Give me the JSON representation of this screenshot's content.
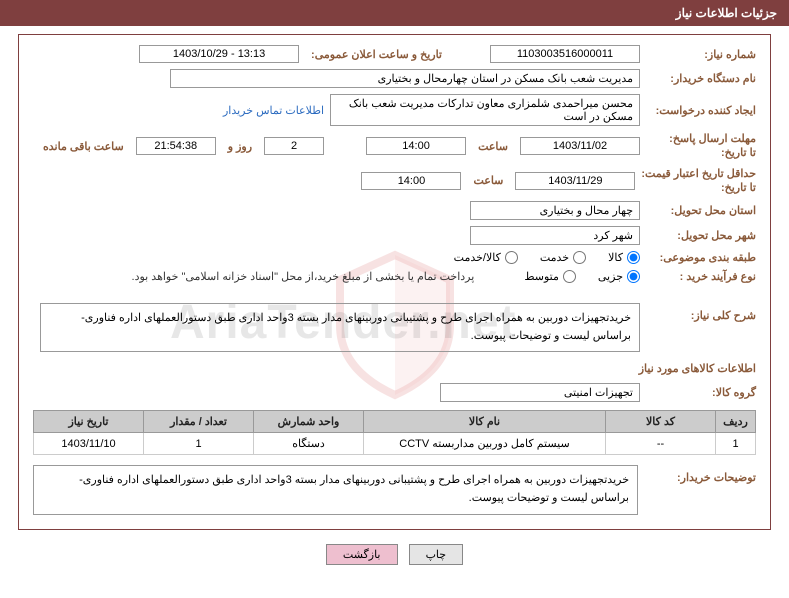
{
  "header": {
    "title": "جزئیات اطلاعات نیاز"
  },
  "need": {
    "number_label": "شماره نیاز:",
    "number": "1103003516000011",
    "announce_label": "تاریخ و ساعت اعلان عمومی:",
    "announce_value": "1403/10/29 - 13:13",
    "buyer_org_label": "نام دستگاه خریدار:",
    "buyer_org": "مدیریت شعب بانک مسکن در استان چهارمحال و بختیاری",
    "requester_label": "ایجاد کننده درخواست:",
    "requester": "محسن  میراحمدی شلمزاری  معاون تدارکات  مدیریت شعب بانک مسکن در است",
    "contact_link": "اطلاعات تماس خریدار",
    "deadline_label": "مهلت ارسال پاسخ:",
    "to_label": "تا تاریخ:",
    "deadline_date": "1403/11/02",
    "time_label": "ساعت",
    "deadline_time": "14:00",
    "days_remaining": "2",
    "days_and": "روز و",
    "timer": "21:54:38",
    "remaining_label": "ساعت باقی مانده",
    "validity_label": "حداقل تاریخ اعتبار قیمت:",
    "validity_date": "1403/11/29",
    "validity_time": "14:00",
    "delivery_province_label": "استان محل تحویل:",
    "delivery_province": "چهار محال و بختیاری",
    "delivery_city_label": "شهر محل تحویل:",
    "delivery_city": "شهر کرد",
    "category_label": "طبقه بندی موضوعی:",
    "cat_goods": "کالا",
    "cat_service": "خدمت",
    "cat_both": "کالا/خدمت",
    "process_label": "نوع فرآیند خرید :",
    "proc_partial": "جزیی",
    "proc_medium": "متوسط",
    "payment_note": "پرداخت تمام یا بخشی از مبلغ خرید،از محل \"اسناد خزانه اسلامی\" خواهد بود.",
    "general_desc_label": "شرح کلی نیاز:",
    "general_desc": "خریدتجهیزات دوربین به همراه اجرای طرح و پشتیبانی دوربینهای مدار بسته 3واحد اداری طبق دستورالعملهای اداره فناوری- براساس لیست و توضیحات پیوست."
  },
  "items_section": {
    "title": "اطلاعات کالاهای مورد نیاز",
    "group_label": "گروه کالا:",
    "group_value": "تجهیزات امنیتی",
    "columns": {
      "row": "ردیف",
      "code": "کد کالا",
      "name": "نام کالا",
      "unit": "واحد شمارش",
      "qty": "تعداد / مقدار",
      "req_date": "تاریخ نیاز"
    },
    "rows": [
      {
        "row": "1",
        "code": "--",
        "name": "سیستم کامل دوربین مداربسته CCTV",
        "unit": "دستگاه",
        "qty": "1",
        "req_date": "1403/11/10"
      }
    ]
  },
  "buyer_desc": {
    "label": "توضیحات خریدار:",
    "text": "خریدتجهیزات دوربین به همراه اجرای طرح و پشتیبانی دوربینهای مدار بسته 3واحد اداری طبق دستورالعملهای اداره فناوری- براساس لیست و توضیحات پیوست."
  },
  "buttons": {
    "print": "چاپ",
    "back": "بازگشت"
  },
  "colors": {
    "header_bg": "#7f3f3f",
    "label_color": "#8a5a3a",
    "link_color": "#2a6abf",
    "table_header_bg": "#cccccc"
  }
}
